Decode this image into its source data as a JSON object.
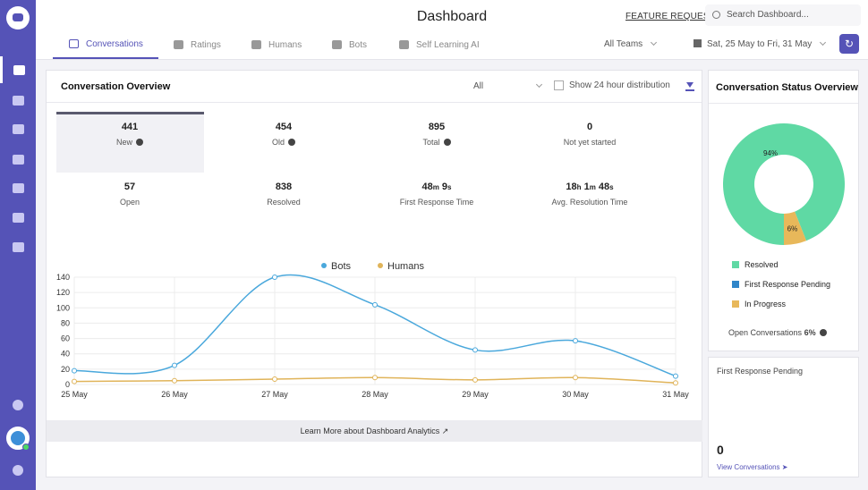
{
  "header": {
    "title": "Dashboard",
    "feature_request": "FEATURE REQUEST",
    "search_placeholder": "Search Dashboard..."
  },
  "tabs": [
    {
      "label": "Conversations"
    },
    {
      "label": "Ratings"
    },
    {
      "label": "Humans"
    },
    {
      "label": "Bots"
    },
    {
      "label": "Self Learning AI"
    }
  ],
  "filters": {
    "team": "All Teams",
    "date_range": "Sat, 25 May to Fri, 31 May"
  },
  "overview": {
    "title": "Conversation Overview",
    "filter_value": "All",
    "distribution_label": "Show 24 hour distribution",
    "stats": [
      {
        "value": "441",
        "label": "New"
      },
      {
        "value": "454",
        "label": "Old"
      },
      {
        "value": "895",
        "label": "Total"
      },
      {
        "value": "0",
        "label": "Not yet started"
      },
      {
        "value": "57",
        "label": "Open"
      },
      {
        "value": "838",
        "label": "Resolved"
      },
      {
        "value_parts": [
          "48",
          "m",
          "9",
          "s"
        ],
        "label": "First Response Time"
      },
      {
        "value_parts": [
          "18",
          "h",
          "1",
          "m",
          "48",
          "s"
        ],
        "label": "Avg. Resolution Time"
      }
    ],
    "learn_more": "Learn More about Dashboard Analytics"
  },
  "chart_data": {
    "type": "line",
    "x": [
      "25 May",
      "26 May",
      "27 May",
      "28 May",
      "29 May",
      "30 May",
      "31 May"
    ],
    "series": [
      {
        "name": "Bots",
        "color": "#4aa8dc",
        "values": [
          18,
          25,
          140,
          104,
          45,
          57,
          11
        ]
      },
      {
        "name": "Humans",
        "color": "#e0b45a",
        "values": [
          4,
          5,
          7,
          9,
          6,
          9,
          2
        ]
      }
    ],
    "ylim": [
      0,
      140
    ],
    "yticks": [
      0,
      20,
      40,
      60,
      80,
      100,
      120,
      140
    ],
    "grid": true,
    "legend": "top-center"
  },
  "status": {
    "title": "Conversation Status Overview",
    "slices": [
      {
        "label": "Resolved",
        "value": 94,
        "color": "#5fd9a4",
        "text": "94%"
      },
      {
        "label": "In Progress",
        "value": 6,
        "color": "#e8b85a",
        "text": "6%"
      }
    ],
    "legend": [
      {
        "label": "Resolved",
        "color": "#5fd9a4"
      },
      {
        "label": "First Response Pending",
        "color": "#2f86c9"
      },
      {
        "label": "In Progress",
        "color": "#e8b85a"
      }
    ],
    "open_label": "Open Conversations",
    "open_value": "6%"
  },
  "pending": {
    "title": "First Response Pending",
    "count": "0",
    "link": "View Conversations"
  }
}
